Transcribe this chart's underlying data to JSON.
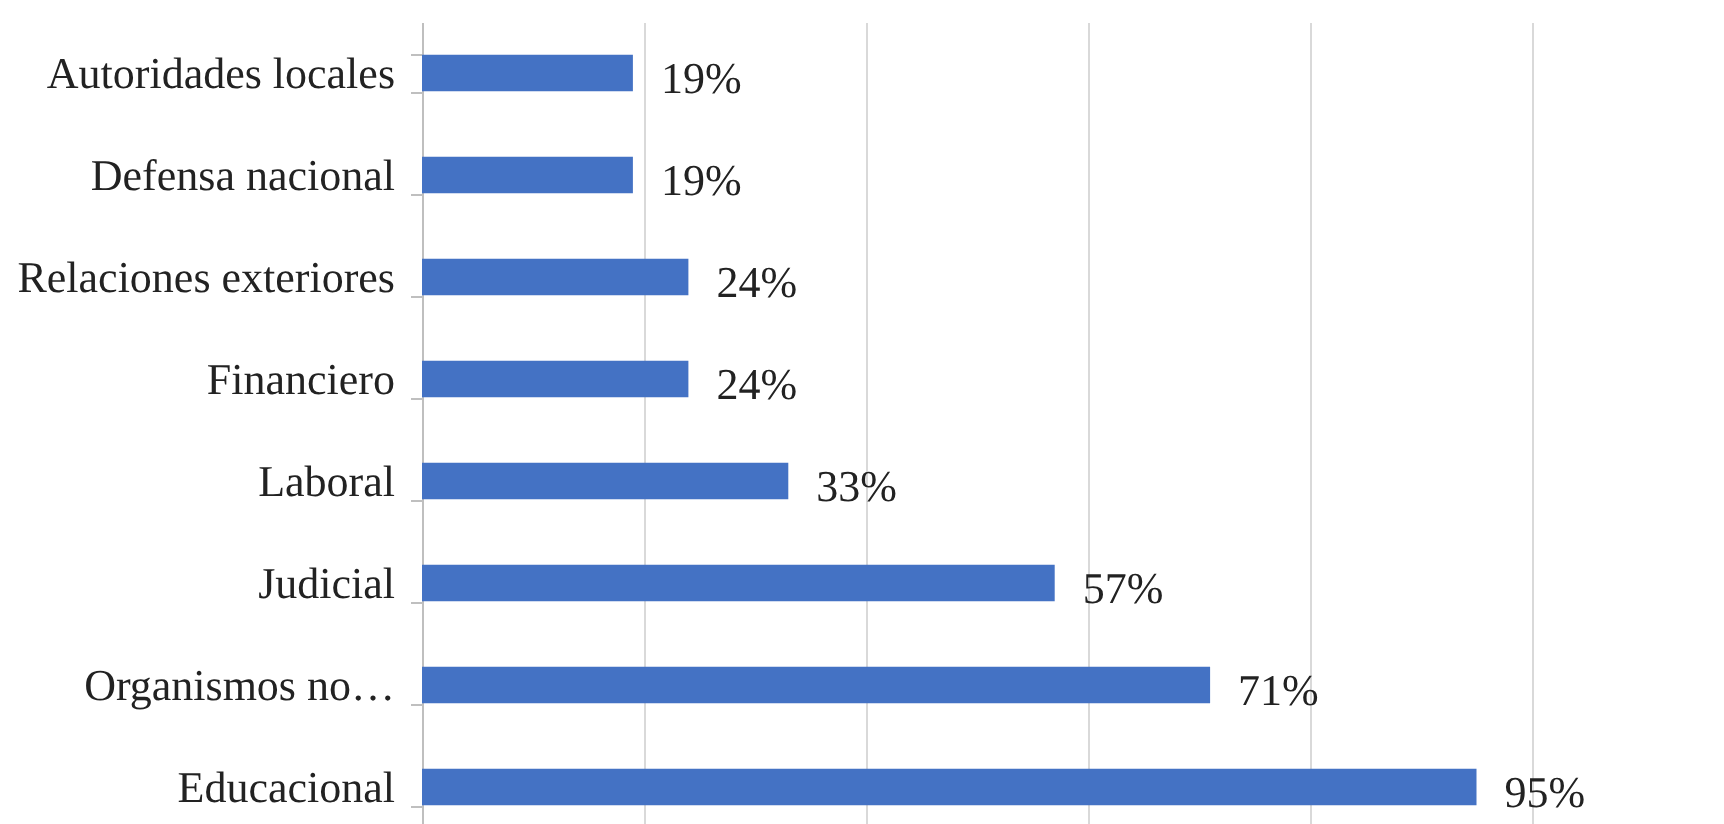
{
  "chart_data": {
    "type": "bar",
    "orientation": "horizontal",
    "categories": [
      "Autoridades locales",
      "Defensa nacional",
      "Relaciones exteriores",
      "Financiero",
      "Laboral",
      "Judicial",
      "Organismos no…",
      "Educacional"
    ],
    "values": [
      19,
      19,
      24,
      24,
      33,
      57,
      71,
      95
    ],
    "value_labels": [
      "19%",
      "19%",
      "24%",
      "24%",
      "33%",
      "57%",
      "71%",
      "95%"
    ],
    "color": "#4472c4",
    "xlim": [
      0,
      100
    ],
    "xticks": [
      {
        "value": 0,
        "label": null
      },
      {
        "value": 20,
        "label": null
      },
      {
        "value": 40,
        "label": null
      },
      {
        "value": 60,
        "label": null
      },
      {
        "value": 80,
        "label": null
      },
      {
        "value": 100,
        "label": null
      }
    ],
    "grid": "x",
    "tick_labels": "y"
  }
}
